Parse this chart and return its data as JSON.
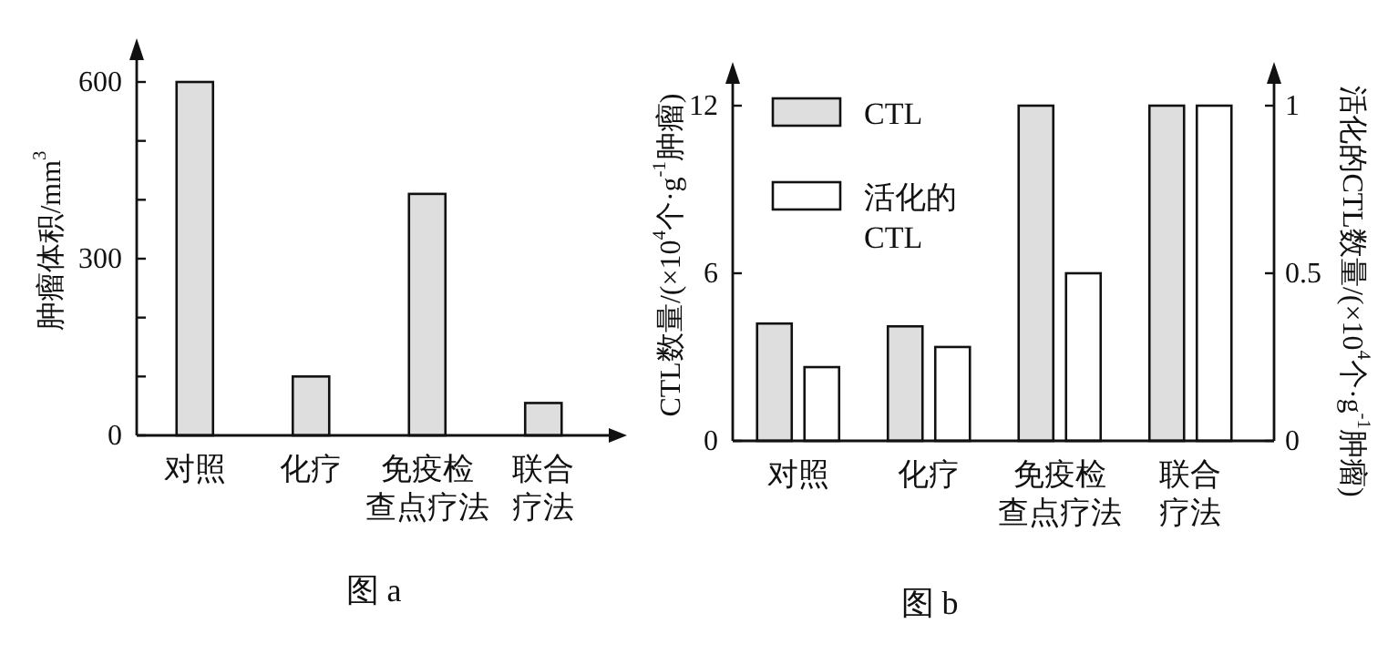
{
  "chart_data": [
    {
      "type": "bar",
      "ylabel": "肿瘤体积/mm$^{3}$",
      "categories": [
        "对照",
        "化疗",
        "免疫检查点疗法",
        "联合疗法"
      ],
      "values": [
        600,
        100,
        410,
        55
      ],
      "color": "#dedede",
      "ylim": [
        0,
        600
      ],
      "yticks": [
        0,
        {
          "value": 100,
          "label": null
        },
        {
          "value": 200,
          "label": null
        },
        300,
        {
          "value": 400,
          "label": null
        },
        {
          "value": 500,
          "label": null
        },
        600
      ],
      "annotations": [
        "图 a"
      ]
    },
    {
      "type": "bar",
      "ylabel": "CTL数量/(×10$^{4}$个·g$^{-1}$肿瘤)",
      "y2label": "活化的CTL数量/(×10$^{4}$个·g$^{-1}$肿瘤)",
      "categories": [
        "对照",
        "化疗",
        "免疫检查点疗法",
        "联合疗法"
      ],
      "series": [
        {
          "name": "CTL",
          "color": "#dedede",
          "values": [
            4.2,
            4.1,
            12,
            12
          ]
        },
        {
          "name": "活化的CTL",
          "color": "#ffffff",
          "values": [
            0.22,
            0.28,
            0.5,
            1
          ],
          "axis": "y2"
        }
      ],
      "ylim": [
        0,
        12
      ],
      "yticks": [
        0,
        6,
        12
      ],
      "y2lim": [
        0,
        1
      ],
      "y2ticks": [
        0,
        0.5,
        1
      ],
      "legend": "top left",
      "annotations": [
        "图 b"
      ]
    }
  ]
}
